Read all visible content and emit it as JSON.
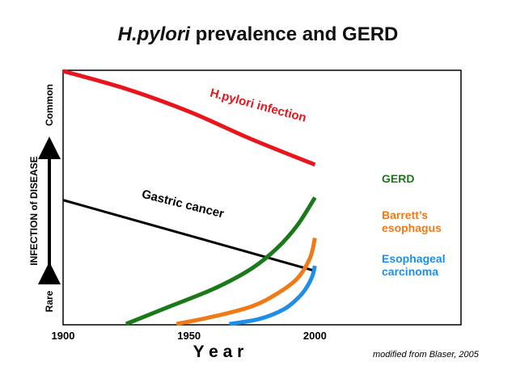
{
  "chart_data": {
    "type": "line",
    "title_italic": "H.pylori",
    "title_rest": " prevalence and GERD",
    "xlabel": "Y e a r",
    "ylabel": "INFECTION of DISEASE",
    "y_high_label": "Common",
    "y_low_label": "Rare",
    "credit": "modified from Blaser, 2005",
    "xlim": [
      1900,
      2058
    ],
    "ylim": [
      0,
      100
    ],
    "x_ticks": [
      "1900",
      "1950",
      "2000"
    ],
    "x_tick_values": [
      1900,
      1950,
      2000
    ],
    "series": [
      {
        "name": "H.pylori infection",
        "label_lines": [
          "H.pylori infection"
        ],
        "label_style": "curve",
        "color": "#e8151c",
        "points": [
          [
            1900,
            100
          ],
          [
            1925,
            93
          ],
          [
            1950,
            84
          ],
          [
            1975,
            73
          ],
          [
            2000,
            63
          ]
        ]
      },
      {
        "name": "Gastric cancer",
        "label_lines": [
          "Gastric cancer"
        ],
        "label_style": "curve",
        "color": "#000000",
        "points": [
          [
            1900,
            49
          ],
          [
            2000,
            21
          ]
        ]
      },
      {
        "name": "GERD",
        "label_lines": [
          "GERD"
        ],
        "label_style": "end",
        "color": "#1a7a1a",
        "points": [
          [
            1925,
            0
          ],
          [
            1940,
            6
          ],
          [
            1960,
            14
          ],
          [
            1975,
            22
          ],
          [
            1985,
            30
          ],
          [
            1993,
            39
          ],
          [
            2000,
            50
          ]
        ]
      },
      {
        "name": "Barrett's esophagus",
        "label_lines": [
          "Barrett’s",
          "esophagus"
        ],
        "label_style": "end",
        "color": "#f07a17",
        "points": [
          [
            1945,
            0
          ],
          [
            1960,
            3
          ],
          [
            1975,
            7
          ],
          [
            1985,
            12
          ],
          [
            1993,
            18
          ],
          [
            1998,
            26
          ],
          [
            2000,
            34
          ]
        ]
      },
      {
        "name": "Esophageal carcinoma",
        "label_lines": [
          "Esophageal",
          "carcinoma"
        ],
        "label_style": "end",
        "color": "#1e8fe8",
        "points": [
          [
            1966,
            0
          ],
          [
            1978,
            2
          ],
          [
            1988,
            6
          ],
          [
            1994,
            11
          ],
          [
            1997,
            15
          ],
          [
            1999,
            19
          ],
          [
            2000,
            23
          ]
        ]
      }
    ]
  }
}
